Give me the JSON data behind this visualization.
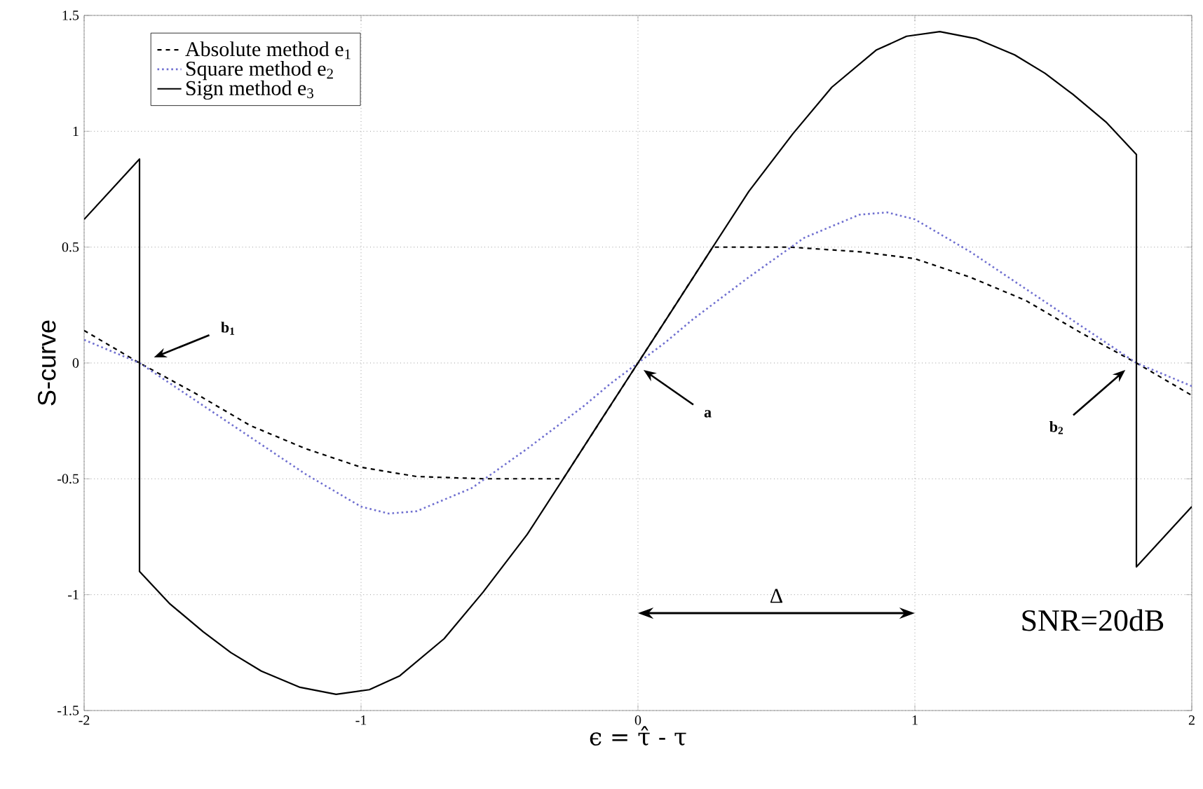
{
  "chart_data": {
    "type": "line",
    "xlabel": "ϵ = τ̂ - τ",
    "ylabel": "S-curve",
    "xlim": [
      -2,
      2
    ],
    "ylim": [
      -1.5,
      1.5
    ],
    "xticks": [
      -2,
      -1,
      0,
      1,
      2
    ],
    "yticks": [
      -1.5,
      -1,
      -0.5,
      0,
      0.5,
      1,
      1.5
    ],
    "grid": true,
    "legend": "top left",
    "series": [
      {
        "name": "Absolute method e$_{1}$",
        "color": "#000000",
        "line_style": "dashed",
        "x": [
          -2,
          -1.8,
          -1.6,
          -1.4,
          -1.2,
          -1,
          -0.8,
          -0.55,
          -0.27,
          0,
          0.27,
          0.55,
          0.8,
          1,
          1.2,
          1.4,
          1.6,
          1.8,
          2
        ],
        "values": [
          0.14,
          0,
          -0.13,
          -0.27,
          -0.37,
          -0.45,
          -0.49,
          -0.5,
          -0.5,
          0,
          0.5,
          0.5,
          0.48,
          0.45,
          0.37,
          0.27,
          0.13,
          0,
          -0.14
        ]
      },
      {
        "name": "Square method e$_{2}$",
        "color": "#7070d0",
        "line_style": "dotted",
        "x": [
          -2,
          -1.8,
          -1.65,
          -1.4,
          -1.2,
          -1,
          -0.9,
          -0.8,
          -0.6,
          -0.4,
          -0.2,
          -0.1,
          0,
          0.1,
          0.2,
          0.4,
          0.6,
          0.8,
          0.9,
          1,
          1.2,
          1.4,
          1.65,
          1.8,
          2
        ],
        "values": [
          0.1,
          0,
          -0.12,
          -0.32,
          -0.48,
          -0.62,
          -0.65,
          -0.64,
          -0.54,
          -0.37,
          -0.19,
          -0.09,
          0,
          0.09,
          0.19,
          0.37,
          0.54,
          0.64,
          0.65,
          0.62,
          0.48,
          0.32,
          0.12,
          0,
          -0.1
        ]
      },
      {
        "name": "Sign method e$_{3}$",
        "color": "#000000",
        "line_style": "solid",
        "x": [
          -2,
          -1.8,
          -1.8,
          -1.69,
          -1.57,
          -1.47,
          -1.36,
          -1.22,
          -1.09,
          -0.97,
          -0.86,
          -0.7,
          -0.56,
          -0.4,
          -0.27,
          -0.13,
          0,
          0.13,
          0.27,
          0.4,
          0.56,
          0.7,
          0.86,
          0.97,
          1.09,
          1.22,
          1.36,
          1.47,
          1.57,
          1.69,
          1.8,
          1.8,
          2
        ],
        "values": [
          0.62,
          0.88,
          -0.9,
          -1.04,
          -1.16,
          -1.25,
          -1.33,
          -1.4,
          -1.43,
          -1.41,
          -1.35,
          -1.19,
          -0.99,
          -0.74,
          -0.5,
          -0.24,
          0,
          0.24,
          0.5,
          0.74,
          0.99,
          1.19,
          1.35,
          1.41,
          1.43,
          1.4,
          1.33,
          1.25,
          1.16,
          1.04,
          0.9,
          -0.88,
          -0.62
        ]
      }
    ],
    "annotations": [
      "b$_{1}$",
      "a",
      "b$_{2}$",
      "Δ",
      "SNR=20dB"
    ]
  }
}
